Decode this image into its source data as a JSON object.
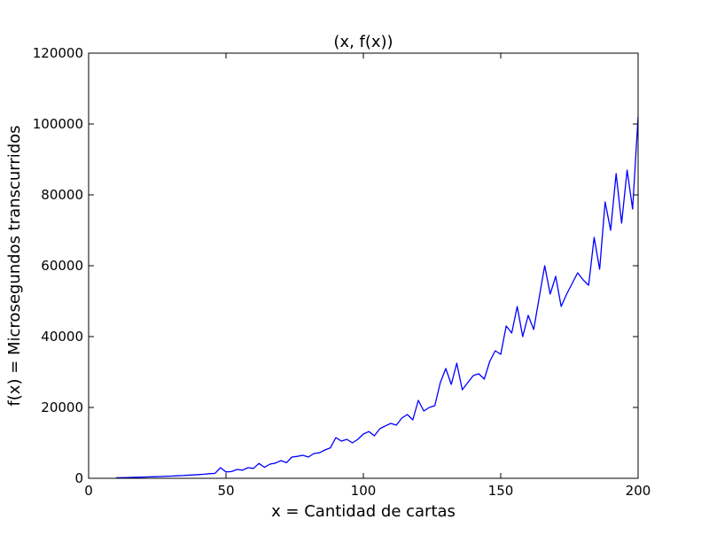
{
  "chart_data": {
    "type": "line",
    "title": "(x, f(x))",
    "xlabel": "x = Cantidad de cartas",
    "ylabel": "f(x) = Microsegundos transcurridos",
    "xlim": [
      0,
      200
    ],
    "ylim": [
      0,
      120000
    ],
    "xticks": [
      0,
      50,
      100,
      150,
      200
    ],
    "yticks": [
      0,
      20000,
      40000,
      60000,
      80000,
      100000,
      120000
    ],
    "grid": false,
    "line_color": "#0000ff",
    "series": [
      {
        "x": [
          10,
          12,
          14,
          16,
          18,
          20,
          22,
          24,
          26,
          28,
          30,
          32,
          34,
          36,
          38,
          40,
          42,
          44,
          46,
          48,
          50,
          52,
          54,
          56,
          58,
          60,
          62,
          64,
          66,
          68,
          70,
          72,
          74,
          76,
          78,
          80,
          82,
          84,
          86,
          88,
          90,
          92,
          94,
          96,
          98,
          100,
          102,
          104,
          106,
          108,
          110,
          112,
          114,
          116,
          118,
          120,
          122,
          124,
          126,
          128,
          130,
          132,
          134,
          136,
          138,
          140,
          142,
          144,
          146,
          148,
          150,
          152,
          154,
          156,
          158,
          160,
          162,
          164,
          166,
          168,
          170,
          172,
          174,
          176,
          178,
          180,
          182,
          184,
          186,
          188,
          190,
          192,
          194,
          196,
          198,
          200
        ],
        "y": [
          150,
          180,
          220,
          260,
          300,
          350,
          400,
          450,
          500,
          560,
          620,
          700,
          780,
          860,
          950,
          1050,
          1150,
          1300,
          1400,
          3000,
          1800,
          1900,
          2500,
          2300,
          3000,
          2800,
          4200,
          3100,
          4000,
          4300,
          5000,
          4400,
          6000,
          6200,
          6500,
          6000,
          7000,
          7200,
          8000,
          8600,
          11500,
          10500,
          11000,
          10000,
          11000,
          12500,
          13200,
          12000,
          14000,
          14800,
          15500,
          15000,
          17000,
          18000,
          16500,
          22000,
          19000,
          20000,
          20500,
          27000,
          31000,
          26500,
          32500,
          25000,
          27000,
          29000,
          29500,
          28000,
          33000,
          36000,
          35000,
          43000,
          41000,
          48500,
          40000,
          46000,
          42000,
          51000,
          60000,
          52000,
          57000,
          48500,
          52000,
          55000,
          58000,
          56000,
          54500,
          68000,
          59000,
          78000,
          70000,
          86000,
          72000,
          87000,
          76000,
          102000
        ]
      }
    ]
  }
}
